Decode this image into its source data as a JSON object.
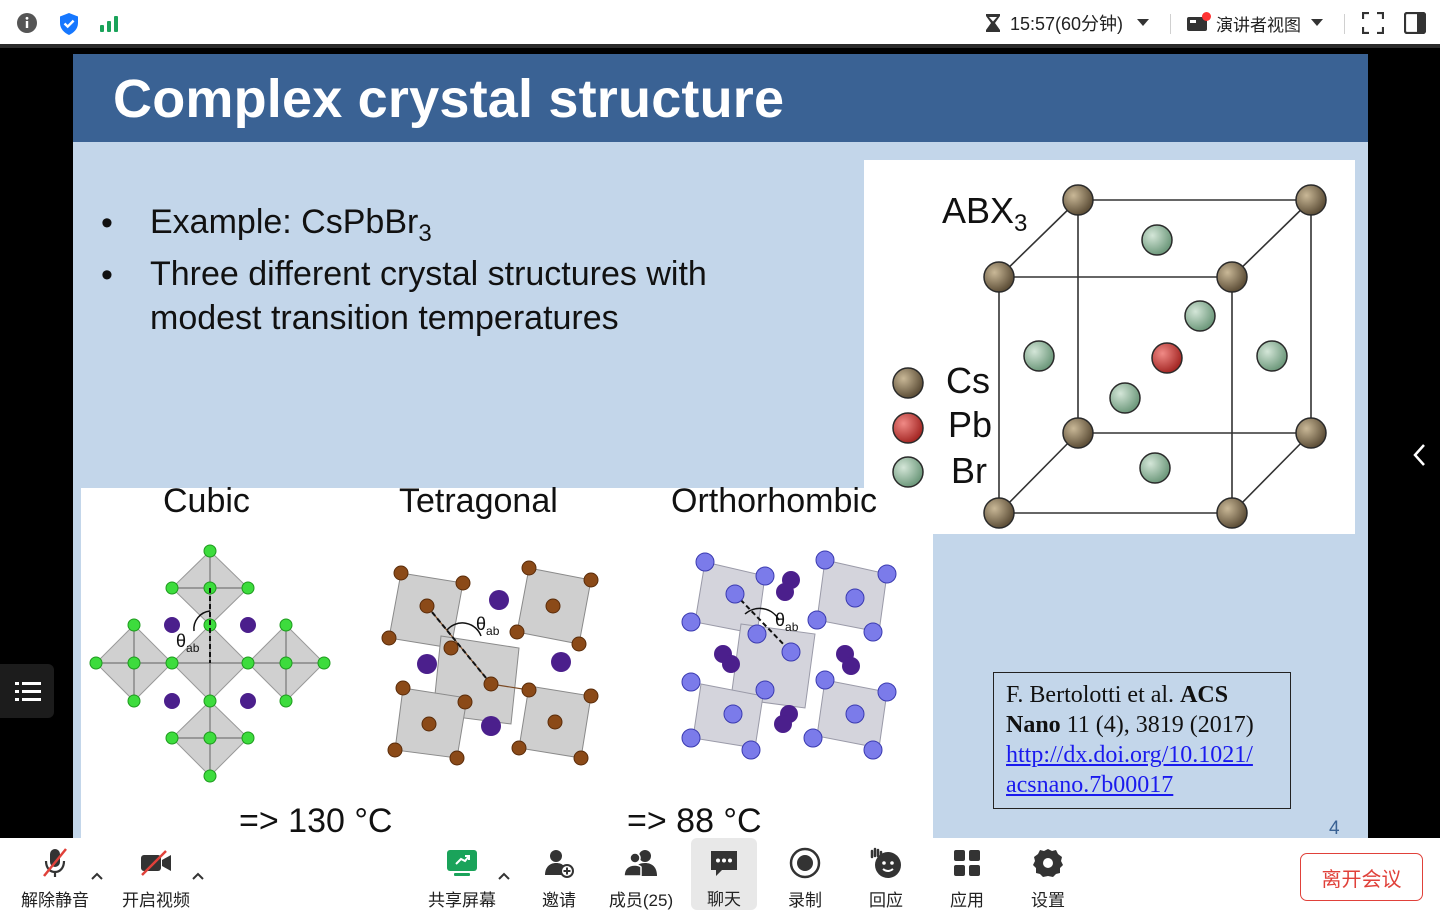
{
  "topbar": {
    "timer_text": "15:57(60分钟)",
    "presenter_view_label": "演讲者视图"
  },
  "slide": {
    "title": "Complex crystal structure",
    "bullets": [
      {
        "main": "Example: CsPbBr",
        "sub": "3"
      },
      {
        "line1": "Three different crystal structures with",
        "line2": "modest transition temperatures"
      }
    ],
    "structures": [
      "Cubic",
      "Tetragonal",
      "Orthorhombic"
    ],
    "temperatures": [
      "=> 130 °C",
      "=> 88 °C"
    ],
    "abx_label": "ABX",
    "abx_sub": "3",
    "legend": [
      {
        "label": "Cs",
        "color": "#7a6a52"
      },
      {
        "label": "Pb",
        "color": "#c9413f"
      },
      {
        "label": "Br",
        "color": "#8fb59c"
      }
    ],
    "reference": {
      "authors": "F. Bertolotti et al. ",
      "journal1": "ACS",
      "journal2": "Nano",
      "citation": " 11 (4), 3819 (2017)",
      "link1": "http://dx.doi.org/10.1021/",
      "link2": "acsnano.7b00017"
    },
    "page_number": "4"
  },
  "toolbar": {
    "unmute": "解除静音",
    "start_video": "开启视频",
    "share_screen": "共享屏幕",
    "invite": "邀请",
    "members": "成员(25)",
    "chat": "聊天",
    "record": "录制",
    "react": "回应",
    "apps": "应用",
    "settings": "设置",
    "leave": "离开会议"
  },
  "colors": {
    "slide_header": "#3a6294",
    "slide_bg": "#c3d6ea",
    "leave": "#e0413a",
    "share_green": "#1aa35a"
  }
}
